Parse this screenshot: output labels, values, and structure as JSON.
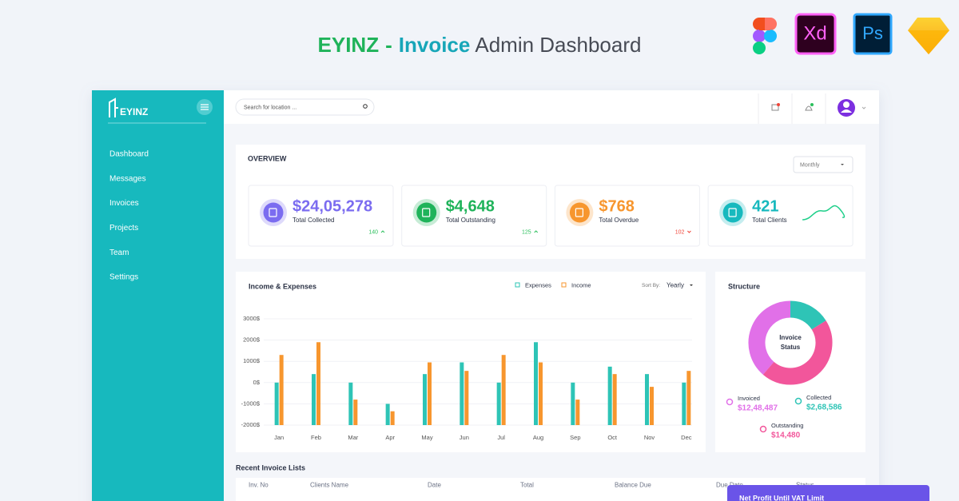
{
  "header": {
    "brand": "EYINZ",
    "separator": "-",
    "highlight": "Invoice",
    "title": "Admin Dashboard"
  },
  "tool_badges": [
    "Xd",
    "Ps"
  ],
  "sidebar": {
    "logo": "EYINZ",
    "menu": [
      "Dashboard",
      "Messages",
      "Invoices",
      "Projects",
      "Team",
      "Settings"
    ]
  },
  "topbar": {
    "search_placeholder": "Search for location ..."
  },
  "overview": {
    "title": "OVERVIEW",
    "period": "Monthly",
    "cards": [
      {
        "value": "$24,05,278",
        "label": "Total Collected",
        "change": "140",
        "trend": "up",
        "color": "#7b6cf0",
        "change_color": "#2bbf5c"
      },
      {
        "value": "$4,648",
        "label": "Total Outstanding",
        "change": "125",
        "trend": "up",
        "color": "#1fb35a",
        "change_color": "#2bbf5c"
      },
      {
        "value": "$768",
        "label": "Total Overdue",
        "change": "102",
        "trend": "down",
        "color": "#f7962e",
        "change_color": "#f04438"
      },
      {
        "value": "421",
        "label": "Total Clients",
        "color": "#17b9be"
      }
    ]
  },
  "chart_data": [
    {
      "type": "bar",
      "title": "Income & Expenses",
      "sort_label": "Sort By:",
      "sort_value": "Yearly",
      "categories": [
        "Jan",
        "Feb",
        "Mar",
        "Apr",
        "May",
        "Jun",
        "Jul",
        "Aug",
        "Sep",
        "Oct",
        "Nov",
        "Dec"
      ],
      "series": [
        {
          "name": "Expenses",
          "color": "#2ec4b6",
          "values": [
            0,
            400,
            0,
            -1000,
            400,
            950,
            0,
            1900,
            0,
            750,
            400,
            0
          ]
        },
        {
          "name": "Income",
          "color": "#f7962e",
          "values": [
            1300,
            1900,
            -800,
            -1350,
            950,
            550,
            1300,
            950,
            -800,
            400,
            -200,
            550
          ]
        }
      ],
      "ylim": [
        -2000,
        3000
      ],
      "yticks": [
        {
          "value": 3000,
          "label": "3000$"
        },
        {
          "value": 2000,
          "label": "2000$"
        },
        {
          "value": 1000,
          "label": "1000$"
        },
        {
          "value": 0,
          "label": "0$"
        },
        {
          "value": -1000,
          "label": "-1000$"
        },
        {
          "value": -2000,
          "label": "-2000$"
        }
      ],
      "grid": true
    },
    {
      "type": "pie",
      "title": "Structure",
      "center_label": [
        "Invoice",
        "Status"
      ],
      "donut": true,
      "categories": [
        "Invoiced",
        "Collected",
        "Outstanding"
      ],
      "values": [
        36,
        15,
        42
      ],
      "amounts": [
        "$12,48,487",
        "$2,68,586",
        "$14,480"
      ],
      "colors": [
        "#e170e8",
        "#2ec4b6",
        "#f2569b"
      ]
    }
  ],
  "recent_invoices": {
    "title": "Recent Invoice Lists",
    "columns": [
      "Inv. No",
      "Clients Name",
      "Date",
      "Total",
      "Balance Due",
      "Due Date",
      "Status"
    ]
  },
  "popup": {
    "title": "Net Profit Until VAT Limit"
  }
}
